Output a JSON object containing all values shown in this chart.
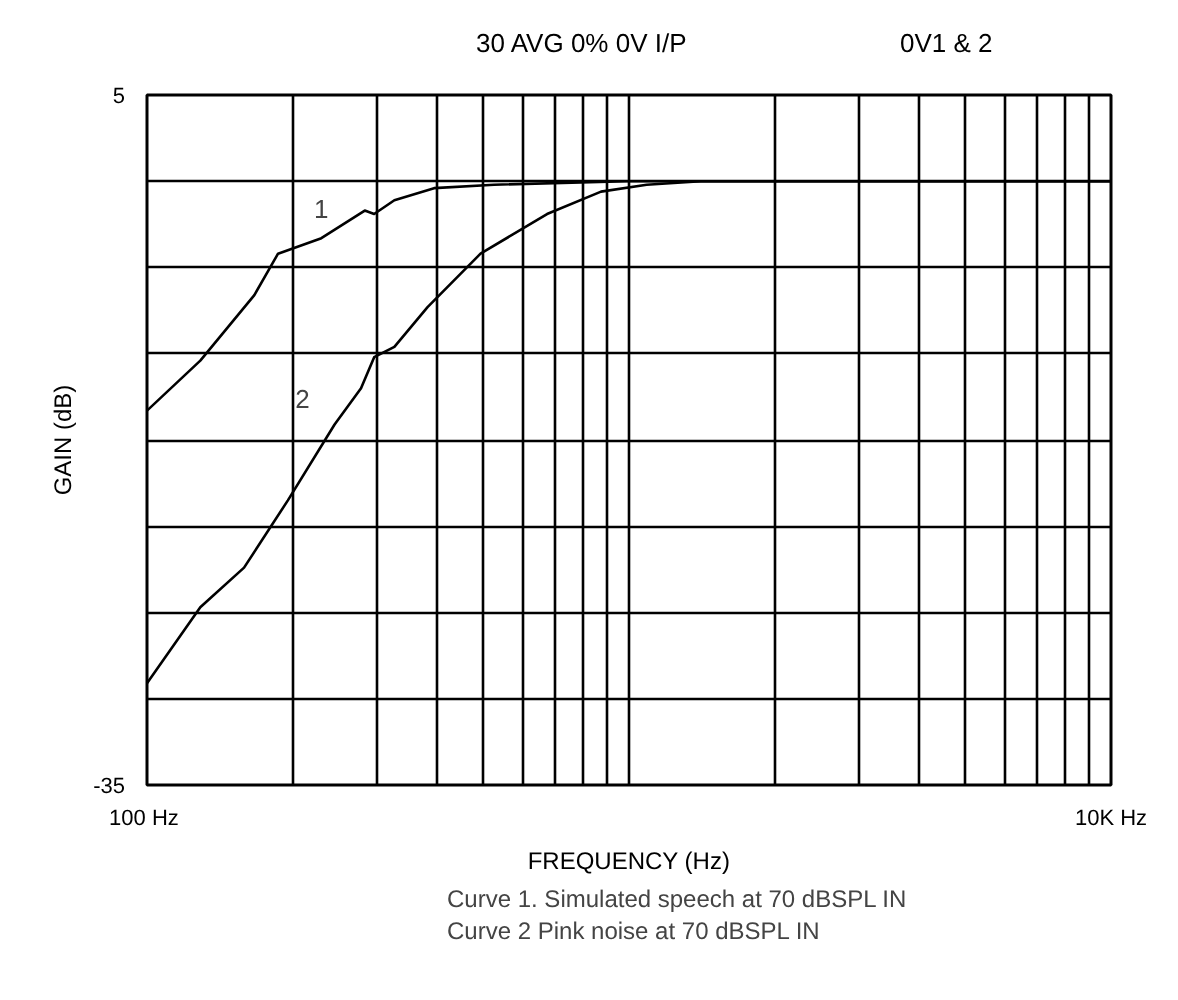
{
  "chart_data": {
    "type": "line",
    "title": "30 AVG 0% 0V I/P",
    "subtitle": "0V1 & 2",
    "xlabel": "FREQUENCY (Hz)",
    "ylabel": "GAIN (dB)",
    "log": "x",
    "xlim": [
      100,
      10000
    ],
    "ylim": [
      -35,
      5
    ],
    "xticks": [
      {
        "value": 100,
        "label": "100  Hz"
      },
      {
        "value": 200,
        "label": null
      },
      {
        "value": 300,
        "label": null
      },
      {
        "value": 400,
        "label": null
      },
      {
        "value": 500,
        "label": null
      },
      {
        "value": 600,
        "label": null
      },
      {
        "value": 700,
        "label": null
      },
      {
        "value": 800,
        "label": null
      },
      {
        "value": 900,
        "label": null
      },
      {
        "value": 1000,
        "label": null
      },
      {
        "value": 2000,
        "label": null
      },
      {
        "value": 3000,
        "label": null
      },
      {
        "value": 4000,
        "label": null
      },
      {
        "value": 5000,
        "label": null
      },
      {
        "value": 6000,
        "label": null
      },
      {
        "value": 7000,
        "label": null
      },
      {
        "value": 8000,
        "label": null
      },
      {
        "value": 9000,
        "label": null
      },
      {
        "value": 10000,
        "label": "10K Hz"
      }
    ],
    "yticks": [
      5,
      {
        "value": 0,
        "label": null
      },
      {
        "value": -5,
        "label": null
      },
      {
        "value": -10,
        "label": null
      },
      {
        "value": -15,
        "label": null
      },
      {
        "value": -20,
        "label": null
      },
      {
        "value": -25,
        "label": null
      },
      {
        "value": -30,
        "label": null
      },
      -35
    ],
    "grid": true,
    "line_style": "solid",
    "marker": "none",
    "series": [
      {
        "name": "1",
        "color": "#000000",
        "x": [
          100,
          129,
          167,
          187,
          230,
          283,
          296,
          326,
          394,
          525,
          990,
          1500,
          10000
        ],
        "values": [
          -13.3,
          -10.4,
          -6.6,
          -4.2,
          -3.3,
          -1.7,
          -1.9,
          -1.1,
          -0.4,
          -0.2,
          0,
          0,
          0
        ]
      },
      {
        "name": "2",
        "color": "#000000",
        "x": [
          100,
          129,
          159,
          196,
          245,
          278,
          296,
          326,
          382,
          492,
          676,
          875,
          1088,
          1410,
          10000
        ],
        "values": [
          -29.1,
          -24.7,
          -22.4,
          -18.5,
          -14.1,
          -12.0,
          -10.2,
          -9.6,
          -7.3,
          -4.2,
          -1.9,
          -0.6,
          -0.2,
          0,
          0
        ]
      }
    ],
    "annotations": [
      "Curve 1.  Simulated speech at 70 dBSPL IN",
      "Curve 2   Pink noise at 70 dBSPL IN"
    ]
  }
}
